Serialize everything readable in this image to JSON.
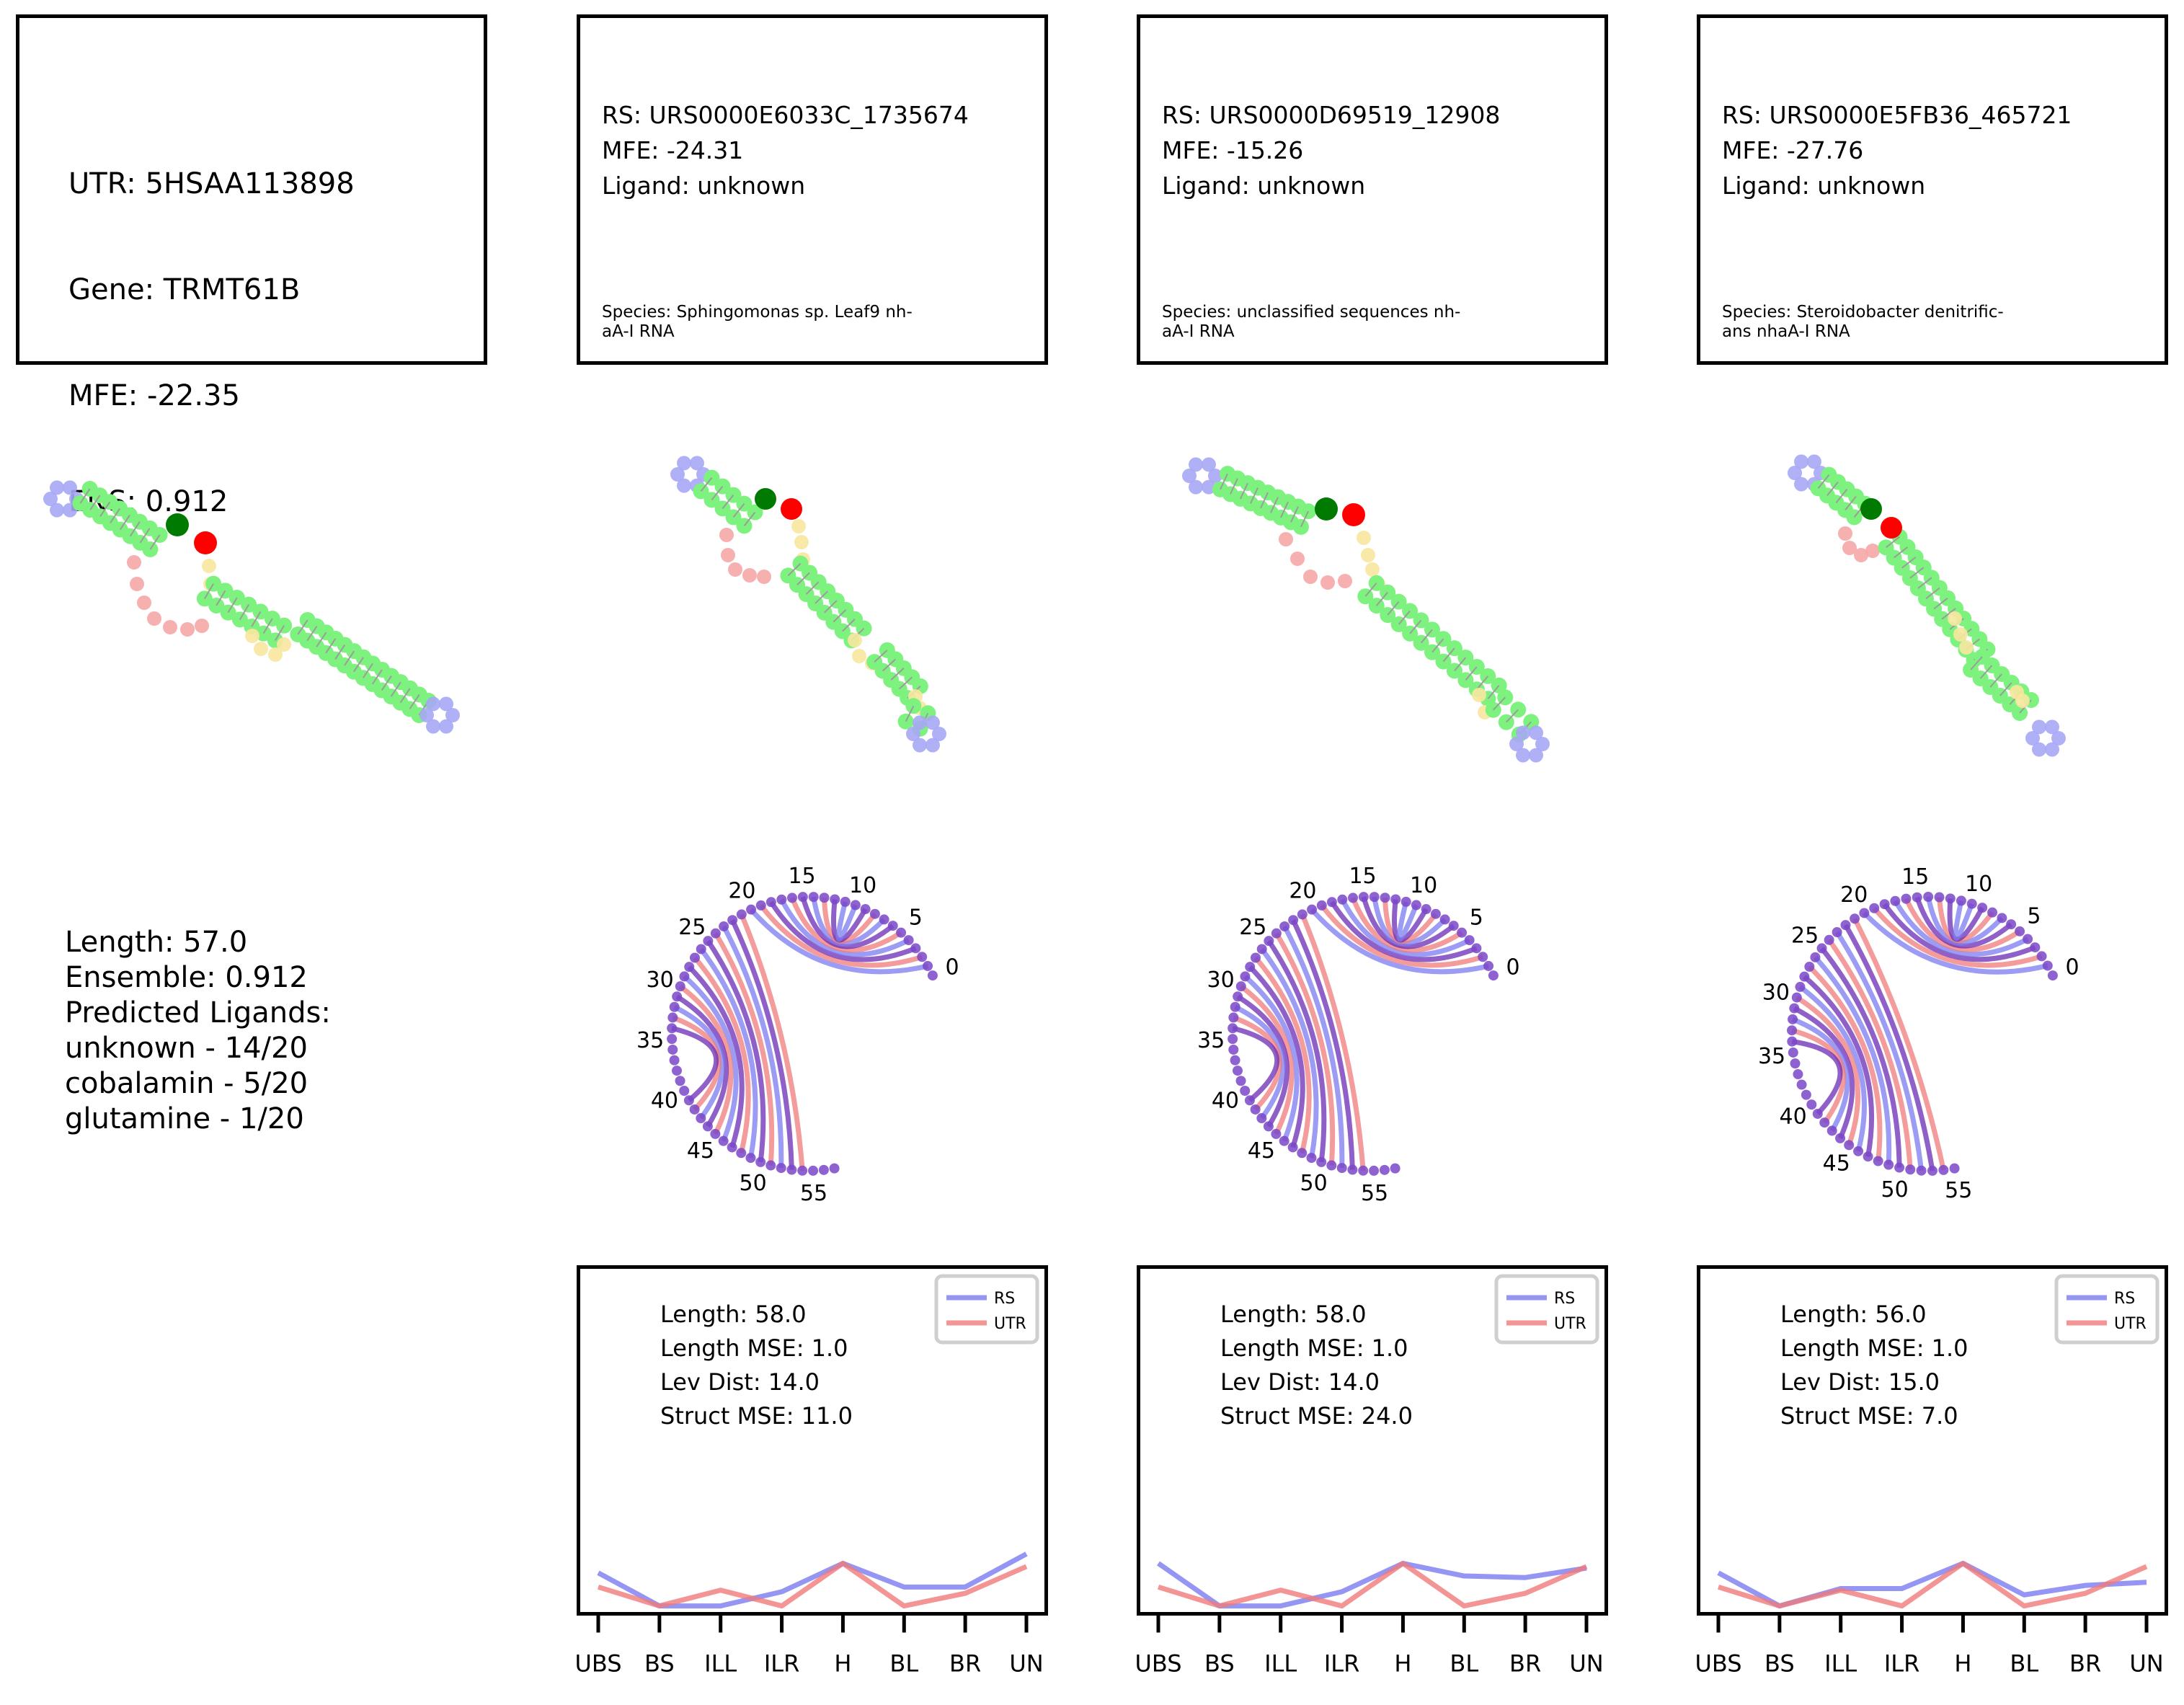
{
  "colors": {
    "rs": "#7b7bf0",
    "utr": "#f07b7b",
    "stem": "#7ef27e",
    "hairpin": "#a7a7f5",
    "bulge": "#f5a7a7",
    "loop": "#f8e7a0",
    "start_marker": "#007a00",
    "end_marker": "#ff0000",
    "arc_purple": "#6a2bb5"
  },
  "utr": {
    "info_lines": [
      "UTR: 5HSAA113898",
      "Gene: TRMT61B",
      "MFE: -22.35",
      "ENS: 0.912"
    ],
    "summary_lines": [
      "Length: 57.0",
      "Ensemble: 0.912",
      "Predicted Ligands:",
      "unknown - 14/20",
      "cobalamin - 5/20",
      "glutamine - 1/20"
    ]
  },
  "rs_panels": [
    {
      "info_lines": [
        "RS: URS0000E6033C_1735674",
        "MFE: -24.31",
        "Ligand: unknown"
      ],
      "species_lines": [
        "Species: Sphingomonas sp. Leaf9 nh-",
        "aA-I RNA"
      ],
      "metrics_lines": [
        "Length: 58.0",
        "Length MSE: 1.0",
        "Lev Dist: 14.0",
        "Struct MSE: 11.0"
      ]
    },
    {
      "info_lines": [
        "RS: URS0000D69519_12908",
        "MFE: -15.26",
        "Ligand: unknown"
      ],
      "species_lines": [
        "Species: unclassified sequences nh-",
        "aA-I RNA"
      ],
      "metrics_lines": [
        "Length: 58.0",
        "Length MSE: 1.0",
        "Lev Dist: 14.0",
        "Struct MSE: 24.0"
      ]
    },
    {
      "info_lines": [
        "RS: URS0000E5FB36_465721",
        "MFE: -27.76",
        "Ligand: unknown"
      ],
      "species_lines": [
        "Species: Steroidobacter denitrific-",
        "ans nhaA-I RNA"
      ],
      "metrics_lines": [
        "Length: 56.0",
        "Length MSE: 1.0",
        "Lev Dist: 15.0",
        "Struct MSE: 7.0"
      ]
    }
  ],
  "chart_data": [
    {
      "type": "line",
      "categories": [
        "UBS",
        "BS",
        "ILL",
        "ILR",
        "H",
        "BL",
        "BR",
        "UN"
      ],
      "series": [
        {
          "name": "RS",
          "values": [
            0.26,
            0.05,
            0.05,
            0.14,
            0.32,
            0.17,
            0.17,
            0.38
          ]
        },
        {
          "name": "UTR",
          "values": [
            0.17,
            0.05,
            0.15,
            0.05,
            0.32,
            0.05,
            0.13,
            0.3
          ]
        }
      ],
      "ylim": [
        0,
        2.2
      ],
      "legend": "top-right",
      "grid": false
    },
    {
      "type": "line",
      "categories": [
        "UBS",
        "BS",
        "ILL",
        "ILR",
        "H",
        "BL",
        "BR",
        "UN"
      ],
      "series": [
        {
          "name": "RS",
          "values": [
            0.32,
            0.05,
            0.05,
            0.14,
            0.32,
            0.24,
            0.23,
            0.29
          ]
        },
        {
          "name": "UTR",
          "values": [
            0.17,
            0.05,
            0.15,
            0.05,
            0.32,
            0.05,
            0.13,
            0.3
          ]
        }
      ],
      "ylim": [
        0,
        2.2
      ],
      "legend": "top-right",
      "grid": false
    },
    {
      "type": "line",
      "categories": [
        "UBS",
        "BS",
        "ILL",
        "ILR",
        "H",
        "BL",
        "BR",
        "UN"
      ],
      "series": [
        {
          "name": "RS",
          "values": [
            0.26,
            0.05,
            0.16,
            0.16,
            0.32,
            0.12,
            0.18,
            0.2
          ]
        },
        {
          "name": "UTR",
          "values": [
            0.17,
            0.05,
            0.15,
            0.05,
            0.32,
            0.05,
            0.13,
            0.3
          ]
        }
      ],
      "ylim": [
        0,
        2.2
      ],
      "legend": "top-right",
      "grid": false
    }
  ],
  "arc_labels": [
    "0",
    "5",
    "10",
    "15",
    "20",
    "25",
    "30",
    "35",
    "40",
    "45",
    "50",
    "55"
  ]
}
